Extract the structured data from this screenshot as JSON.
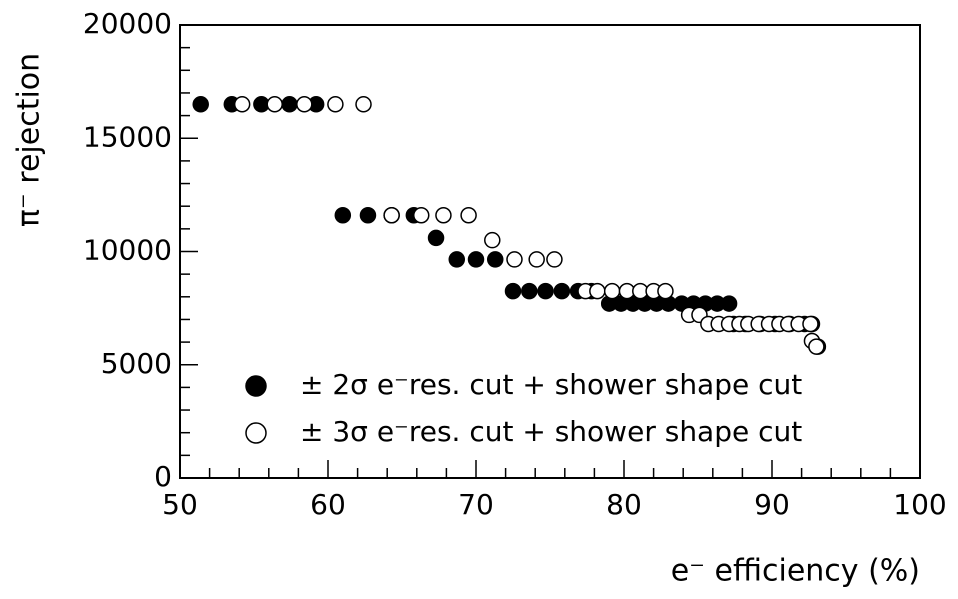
{
  "chart_data": {
    "type": "scatter",
    "xlabel": "e⁻ efficiency (%)",
    "ylabel": "π⁻ rejection",
    "xlim": [
      50,
      100
    ],
    "xticks": [
      50,
      60,
      70,
      80,
      90,
      100
    ],
    "xticks_minor": [
      52,
      54,
      56,
      58,
      62,
      64,
      66,
      68,
      72,
      74,
      76,
      78,
      82,
      84,
      86,
      88,
      92,
      94,
      96,
      98
    ],
    "ylim": [
      0,
      20000
    ],
    "yticks": [
      0,
      5000,
      10000,
      15000,
      20000
    ],
    "yticks_minor": [
      1000,
      2000,
      3000,
      4000,
      6000,
      7000,
      8000,
      9000,
      11000,
      12000,
      13000,
      14000,
      16000,
      17000,
      18000,
      19000
    ],
    "legend": "lower left",
    "series": [
      {
        "name": "± 2σ e⁻res. cut + shower shape cut",
        "color": "#000000",
        "filled": true,
        "x": [
          51.4,
          53.5,
          55.5,
          57.4,
          59.2,
          61.0,
          62.7,
          64.3,
          65.8,
          67.3,
          68.7,
          70.0,
          71.3,
          72.5,
          73.6,
          74.7,
          75.8,
          76.9,
          77.8,
          79.0,
          79.8,
          80.6,
          81.4,
          82.2,
          83.0,
          83.9,
          84.7,
          85.5,
          86.3,
          87.1,
          87.4,
          88.2,
          89.2,
          90.2,
          91.2,
          92.2,
          92.7,
          93.1
        ],
        "values": [
          16500,
          16500,
          16500,
          16500,
          16500,
          11600,
          11600,
          11600,
          11600,
          10600,
          9650,
          9650,
          9650,
          8250,
          8250,
          8250,
          8250,
          8250,
          8250,
          7700,
          7700,
          7700,
          7700,
          7700,
          7700,
          7700,
          7700,
          7700,
          7700,
          7700,
          6800,
          6800,
          6800,
          6800,
          6800,
          6800,
          6800,
          5800
        ]
      },
      {
        "name": "± 3σ e⁻res. cut + shower shape cut",
        "color": "#000000",
        "filled": false,
        "x": [
          54.2,
          56.4,
          58.4,
          60.5,
          62.4,
          64.3,
          66.3,
          67.8,
          69.5,
          71.1,
          72.6,
          74.1,
          75.3,
          77.4,
          78.2,
          79.2,
          80.2,
          81.1,
          82.0,
          82.8,
          84.4,
          85.1,
          85.7,
          86.4,
          87.1,
          87.8,
          88.4,
          89.1,
          89.8,
          90.5,
          91.1,
          91.8,
          92.6,
          92.7,
          93.0
        ],
        "values": [
          16500,
          16500,
          16500,
          16500,
          16500,
          11600,
          11600,
          11600,
          11600,
          10500,
          9650,
          9650,
          9650,
          8250,
          8250,
          8250,
          8250,
          8250,
          8250,
          8250,
          7200,
          7200,
          6800,
          6800,
          6800,
          6800,
          6800,
          6800,
          6800,
          6800,
          6800,
          6800,
          6800,
          6050,
          5800
        ]
      }
    ]
  }
}
